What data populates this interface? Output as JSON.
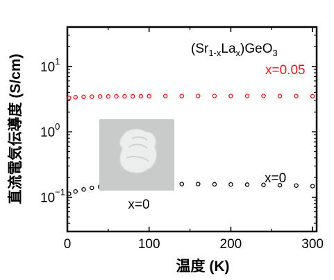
{
  "chart_data": {
    "type": "scatter",
    "title": "",
    "xlabel": "温度 (K)",
    "ylabel": "直流電気伝導度 (S/cm)",
    "xlim": [
      0,
      305
    ],
    "ylim": [
      0.03,
      40
    ],
    "y_scale": "log",
    "grid": false,
    "x_ticks": [
      {
        "value": 0,
        "label": "0"
      },
      {
        "value": 100,
        "label": "100"
      },
      {
        "value": 200,
        "label": "200"
      },
      {
        "value": 300,
        "label": "300"
      }
    ],
    "y_ticks": [
      {
        "value": 0.1,
        "base": "10",
        "exp": "−1"
      },
      {
        "value": 1,
        "base": "10",
        "exp": "0"
      },
      {
        "value": 10,
        "base": "10",
        "exp": "1"
      }
    ],
    "compound": {
      "prefix": "(Sr",
      "sub1": "1-x",
      "mid": "La",
      "sub2": "x",
      "suffix": ")GeO",
      "sub3": "3"
    },
    "inset_label": "x=0",
    "series": [
      {
        "name": "x=0.05",
        "color": "#e8141b",
        "x": [
          2,
          10,
          20,
          30,
          40,
          50,
          60,
          70,
          80,
          90,
          100,
          120,
          140,
          160,
          180,
          200,
          220,
          240,
          260,
          280,
          300
        ],
        "y": [
          3.3,
          3.38,
          3.42,
          3.45,
          3.47,
          3.48,
          3.49,
          3.5,
          3.5,
          3.51,
          3.51,
          3.52,
          3.52,
          3.53,
          3.53,
          3.53,
          3.53,
          3.53,
          3.52,
          3.52,
          3.51
        ]
      },
      {
        "name": "x=0",
        "color": "#000000",
        "x": [
          2,
          10,
          20,
          30,
          40,
          50,
          60,
          70,
          80,
          90,
          100,
          120,
          140,
          160,
          180,
          200,
          220,
          240,
          260,
          280,
          300
        ],
        "y": [
          0.113,
          0.123,
          0.132,
          0.139,
          0.145,
          0.149,
          0.152,
          0.154,
          0.156,
          0.157,
          0.158,
          0.159,
          0.159,
          0.159,
          0.158,
          0.157,
          0.156,
          0.155,
          0.153,
          0.151,
          0.148
        ]
      }
    ]
  }
}
